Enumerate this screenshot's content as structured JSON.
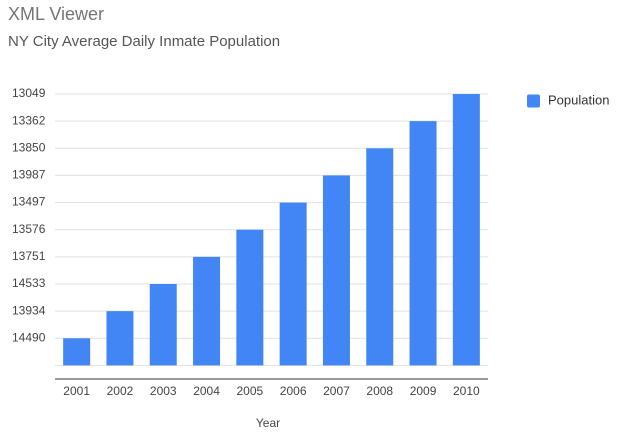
{
  "header": {
    "title": "XML Viewer"
  },
  "chart_data": {
    "type": "bar",
    "title": "NY City Average Daily Inmate Population",
    "categories": [
      "2001",
      "2002",
      "2003",
      "2004",
      "2005",
      "2006",
      "2007",
      "2008",
      "2009",
      "2010"
    ],
    "series": [
      {
        "name": "Population",
        "color": "#4285f4",
        "values": [
          1,
          2,
          3,
          4,
          5,
          6,
          7,
          8,
          9,
          10
        ]
      }
    ],
    "xlabel": "Year",
    "ylim": [
      -0.5,
      10
    ],
    "yticks": [
      {
        "value": 1,
        "label": "14490"
      },
      {
        "value": 2,
        "label": "13934"
      },
      {
        "value": 3,
        "label": "14533"
      },
      {
        "value": 4,
        "label": "13751"
      },
      {
        "value": 5,
        "label": "13576"
      },
      {
        "value": 6,
        "label": "13497"
      },
      {
        "value": 7,
        "label": "13987"
      },
      {
        "value": 8,
        "label": "13850"
      },
      {
        "value": 9,
        "label": "13362"
      },
      {
        "value": 10,
        "label": "13049"
      }
    ],
    "grid": true,
    "legend": "right"
  }
}
